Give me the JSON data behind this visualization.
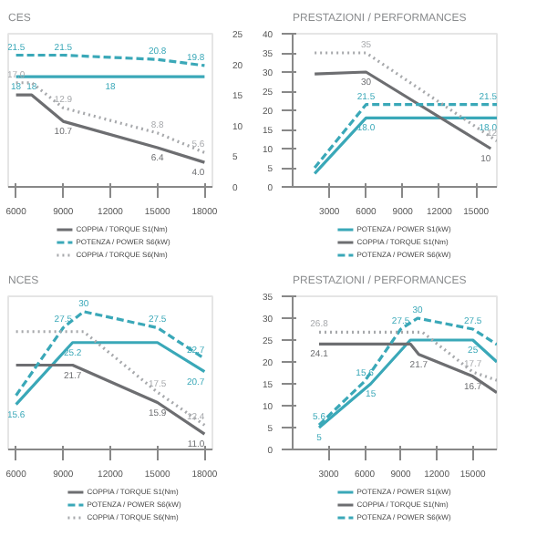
{
  "chart_data": [
    {
      "type": "line",
      "subtitle": "CES",
      "xlim": [
        5500,
        18500
      ],
      "xticks": [
        6000,
        9000,
        12000,
        15000,
        18000
      ],
      "y2lim": [
        0,
        25
      ],
      "y2ticks": [
        0,
        5,
        10,
        15,
        20,
        25
      ],
      "legend": "bottom",
      "series": [
        {
          "color": "#3aa8b8",
          "line_style": "solid",
          "axis": "y2",
          "x": [
            6000,
            7000,
            12000,
            18000
          ],
          "values": [
            18,
            18,
            18,
            18
          ],
          "value_labels": [
            "18",
            "18",
            "18",
            null
          ]
        },
        {
          "name": "COPPIA / TORQUE S1(Nm)",
          "color": "#6d6e71",
          "line_style": "solid",
          "axis": "y2",
          "x": [
            6000,
            7000,
            9000,
            15000,
            18000
          ],
          "values": [
            15.0,
            15.0,
            10.7,
            6.4,
            4.0
          ],
          "value_labels": [
            null,
            null,
            "10.7",
            "6.4",
            "4.0"
          ]
        },
        {
          "name": "POTENZA / POWER S6(kW)",
          "color": "#3aa8b8",
          "line_style": "dashed",
          "axis": "y2",
          "x": [
            6000,
            7000,
            9000,
            15000,
            18000
          ],
          "values": [
            21.5,
            21.5,
            21.5,
            20.8,
            19.8
          ],
          "value_labels": [
            "21.5",
            null,
            "21.5",
            "20.8",
            "19.8"
          ]
        },
        {
          "name": "COPPIA / TORQUE S6(Nm)",
          "color": "#a7a9ac",
          "line_style": "dotted",
          "axis": "y2",
          "x": [
            6000,
            7000,
            9000,
            15000,
            18000
          ],
          "values": [
            17.0,
            17.0,
            12.9,
            8.8,
            5.6
          ],
          "value_labels": [
            "17.0",
            null,
            "12.9",
            "8.8",
            "5.6"
          ]
        }
      ]
    },
    {
      "type": "line",
      "subtitle": "PRESTAZIONI / PERFORMANCES",
      "xlim": [
        0,
        16700
      ],
      "xticks": [
        3000,
        6000,
        9000,
        12000,
        15000
      ],
      "ylim": [
        0,
        40
      ],
      "yticks": [
        0,
        5,
        10,
        15,
        20,
        25,
        30,
        35,
        40
      ],
      "legend": "bottom",
      "series": [
        {
          "name": "POTENZA / POWER S1(kW)",
          "color": "#3aa8b8",
          "line_style": "solid",
          "x": [
            1800,
            6000,
            16700
          ],
          "values": [
            3.5,
            18,
            18
          ],
          "value_labels": [
            null,
            "18.0",
            "18.0"
          ]
        },
        {
          "name": "COPPIA / TORQUE S1(Nm)",
          "color": "#6d6e71",
          "line_style": "solid",
          "x": [
            1800,
            6000,
            16200
          ],
          "values": [
            29.5,
            30,
            10
          ],
          "value_labels": [
            null,
            "30",
            "10"
          ]
        },
        {
          "name": "POTENZA / POWER S6(kW)",
          "color": "#3aa8b8",
          "line_style": "dashed",
          "x": [
            1800,
            6000,
            16700
          ],
          "values": [
            5,
            21.5,
            21.5
          ],
          "value_labels": [
            null,
            "21.5",
            "21.5"
          ]
        },
        {
          "color": "#a7a9ac",
          "line_style": "dotted",
          "x": [
            1800,
            6000,
            16700
          ],
          "values": [
            35,
            35,
            12
          ],
          "value_labels": [
            null,
            "35",
            "12"
          ]
        }
      ]
    },
    {
      "type": "line",
      "subtitle": "NCES",
      "xlim": [
        5500,
        18500
      ],
      "xticks": [
        6000,
        9000,
        12000,
        15000,
        18000
      ],
      "tick_labels": "x",
      "legend": "bottom",
      "series": [
        {
          "color": "#3aa8b8",
          "line_style": "solid",
          "x": [
            6000,
            9600,
            15000,
            18000
          ],
          "values": [
            15.6,
            25.2,
            25.2,
            20.7
          ],
          "value_labels": [
            "15.6",
            "25.2",
            null,
            "20.7"
          ]
        },
        {
          "name": "COPPIA / TORQUE S1(Nm)",
          "color": "#6d6e71",
          "line_style": "solid",
          "x": [
            6000,
            9600,
            15000,
            18000
          ],
          "values": [
            21.7,
            21.7,
            15.9,
            11.0
          ],
          "value_labels": [
            null,
            "21.7",
            "15.9",
            "11.0"
          ]
        },
        {
          "name": "POTENZA / POWER S6(kW)",
          "color": "#3aa8b8",
          "line_style": "dashed",
          "x": [
            6000,
            9000,
            10300,
            15000,
            18000
          ],
          "values": [
            17.0,
            27.5,
            30,
            27.5,
            22.7
          ],
          "value_labels": [
            null,
            "27.5",
            "30",
            "27.5",
            "22.7"
          ]
        },
        {
          "name": "COPPIA / TORQUE S6(Nm)",
          "color": "#a7a9ac",
          "line_style": "dotted",
          "x": [
            6000,
            10300,
            15000,
            18000
          ],
          "values": [
            26.9,
            26.9,
            17.5,
            12.4
          ],
          "value_labels": [
            null,
            null,
            "17.5",
            "12.4"
          ]
        }
      ]
    },
    {
      "type": "line",
      "subtitle": "PRESTAZIONI / PERFORMANCES",
      "xlim": [
        0,
        17000
      ],
      "xticks": [
        3000,
        6000,
        9000,
        12000,
        15000
      ],
      "ylim": [
        0,
        35
      ],
      "yticks": [
        0,
        5,
        10,
        15,
        20,
        25,
        30,
        35
      ],
      "legend": "bottom",
      "series": [
        {
          "name": "POTENZA / POWER S1(kW)",
          "color": "#3aa8b8",
          "line_style": "solid",
          "x": [
            2200,
            6500,
            9800,
            15000,
            17000
          ],
          "values": [
            5,
            15,
            25,
            25,
            20
          ],
          "value_labels": [
            "5",
            "15",
            null,
            "25",
            null
          ]
        },
        {
          "name": "COPPIA / TORQUE S1(Nm)",
          "color": "#6d6e71",
          "line_style": "solid",
          "x": [
            2200,
            9800,
            10500,
            15000,
            17000
          ],
          "values": [
            24.1,
            24.1,
            21.7,
            16.7,
            13.0
          ],
          "value_labels": [
            "24.1",
            null,
            "21.7",
            "16.7",
            null
          ]
        },
        {
          "name": "POTENZA / POWER S6(kW)",
          "color": "#3aa8b8",
          "line_style": "dashed",
          "x": [
            2200,
            6000,
            9000,
            10400,
            15000,
            17000
          ],
          "values": [
            5.6,
            15.6,
            27.5,
            30,
            27.5,
            24.0
          ],
          "value_labels": [
            "5.6",
            "15.6",
            "27.5",
            "30",
            "27.5",
            null
          ]
        },
        {
          "color": "#a7a9ac",
          "line_style": "dotted",
          "x": [
            2200,
            10800,
            15000,
            17000
          ],
          "values": [
            26.8,
            26.8,
            17.7,
            15.8
          ],
          "value_labels": [
            "26.8",
            null,
            "17.7",
            null
          ]
        }
      ]
    }
  ]
}
